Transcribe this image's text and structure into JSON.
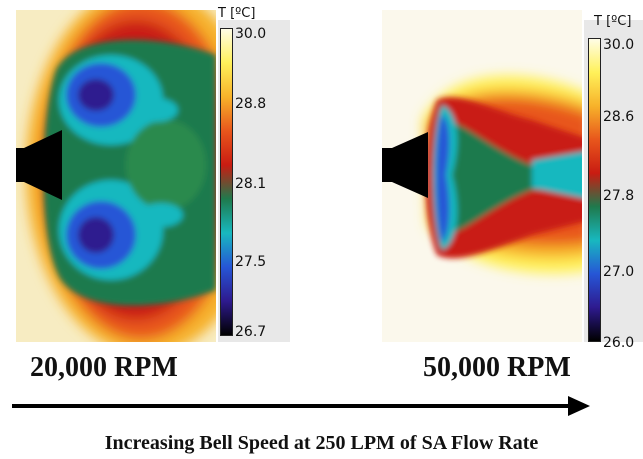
{
  "left": {
    "cbar_title": "T [ºC]",
    "ticks": [
      "30.0",
      "28.8",
      "28.1",
      "27.5",
      "26.7"
    ],
    "rpm_label": "20,000 RPM"
  },
  "right": {
    "cbar_title": "T [ºC]",
    "ticks": [
      "30.0",
      "28.6",
      "27.8",
      "27.0",
      "26.0"
    ],
    "rpm_label": "50,000 RPM"
  },
  "caption": "Increasing Bell Speed at 250 LPM  of SA Flow Rate",
  "colormap": [
    "#fffde6",
    "#fff15a",
    "#f7b22a",
    "#e8561c",
    "#c91c12",
    "#1f7a4d",
    "#18b8bf",
    "#2656d6",
    "#2e1a8f",
    "#000000"
  ]
}
